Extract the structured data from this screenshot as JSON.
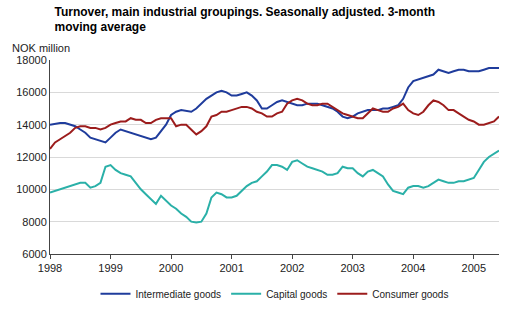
{
  "chart_data": {
    "type": "line",
    "title": "Turnover, main industrial groupings. Seasonally adjusted. 3-month moving average",
    "ylabel": "NOK million",
    "categories": [
      "1998",
      null,
      null,
      null,
      null,
      null,
      null,
      null,
      null,
      null,
      null,
      null,
      "1999",
      null,
      null,
      null,
      null,
      null,
      null,
      null,
      null,
      null,
      null,
      null,
      "2000",
      null,
      null,
      null,
      null,
      null,
      null,
      null,
      null,
      null,
      null,
      null,
      "2001",
      null,
      null,
      null,
      null,
      null,
      null,
      null,
      null,
      null,
      null,
      null,
      "2002",
      null,
      null,
      null,
      null,
      null,
      null,
      null,
      null,
      null,
      null,
      null,
      "2003",
      null,
      null,
      null,
      null,
      null,
      null,
      null,
      null,
      null,
      null,
      null,
      "2004",
      null,
      null,
      null,
      null,
      null,
      null,
      null,
      null,
      null,
      null,
      null,
      "2005",
      null,
      null,
      null,
      null,
      null
    ],
    "series": [
      {
        "name": "Intermediate goods",
        "color": "#1f3c9c",
        "values": [
          14000,
          14050,
          14100,
          14100,
          14000,
          13900,
          13700,
          13500,
          13200,
          13100,
          13000,
          12900,
          13200,
          13500,
          13700,
          13600,
          13500,
          13400,
          13300,
          13200,
          13100,
          13200,
          13600,
          14000,
          14600,
          14800,
          14900,
          14850,
          14800,
          15000,
          15300,
          15600,
          15800,
          16000,
          16100,
          16000,
          15800,
          15800,
          15900,
          16000,
          15800,
          15500,
          15000,
          15000,
          15200,
          15400,
          15500,
          15400,
          15300,
          15200,
          15200,
          15300,
          15300,
          15300,
          15200,
          15100,
          15000,
          14800,
          14500,
          14400,
          14500,
          14700,
          14800,
          14900,
          14900,
          14900,
          15000,
          15000,
          15100,
          15200,
          15600,
          16300,
          16700,
          16800,
          16900,
          17000,
          17100,
          17400,
          17300,
          17200,
          17300,
          17400,
          17400,
          17300,
          17300,
          17300,
          17400,
          17500,
          17500,
          17500
        ]
      },
      {
        "name": "Capital goods",
        "color": "#2ab0a8",
        "values": [
          9800,
          9900,
          10000,
          10100,
          10200,
          10300,
          10400,
          10400,
          10100,
          10200,
          10400,
          11400,
          11500,
          11200,
          11000,
          10900,
          10800,
          10400,
          10000,
          9700,
          9400,
          9100,
          9600,
          9300,
          9000,
          8800,
          8500,
          8300,
          8000,
          7950,
          8000,
          8500,
          9500,
          9800,
          9700,
          9500,
          9500,
          9600,
          9900,
          10200,
          10400,
          10500,
          10800,
          11100,
          11500,
          11500,
          11400,
          11200,
          11700,
          11800,
          11600,
          11400,
          11300,
          11200,
          11100,
          10900,
          10900,
          11000,
          11400,
          11300,
          11300,
          11000,
          10800,
          11100,
          11200,
          11000,
          10800,
          10300,
          9900,
          9800,
          9700,
          10100,
          10200,
          10200,
          10100,
          10200,
          10400,
          10600,
          10500,
          10400,
          10400,
          10500,
          10500,
          10600,
          10700,
          11200,
          11700,
          12000,
          12200,
          12400
        ]
      },
      {
        "name": "Consumer goods",
        "color": "#9c1c1c",
        "values": [
          12500,
          12900,
          13100,
          13300,
          13500,
          13800,
          13900,
          13900,
          13800,
          13800,
          13700,
          13800,
          14000,
          14100,
          14200,
          14200,
          14400,
          14300,
          14300,
          14100,
          14100,
          14300,
          14400,
          14400,
          14400,
          13900,
          14000,
          14000,
          13700,
          13400,
          13600,
          13900,
          14500,
          14600,
          14800,
          14800,
          14900,
          15000,
          15100,
          15100,
          15000,
          14800,
          14700,
          14500,
          14500,
          14700,
          14800,
          15300,
          15500,
          15600,
          15500,
          15300,
          15200,
          15200,
          15300,
          15300,
          15100,
          14900,
          14700,
          14600,
          14500,
          14400,
          14400,
          14700,
          15000,
          14900,
          14800,
          14800,
          15000,
          15100,
          15300,
          14900,
          14700,
          14600,
          14800,
          15200,
          15500,
          15400,
          15200,
          14900,
          14900,
          14700,
          14500,
          14300,
          14200,
          14000,
          14000,
          14100,
          14200,
          14500
        ]
      }
    ],
    "ylim": [
      6000,
      18000
    ],
    "yticks": [
      6000,
      8000,
      10000,
      12000,
      14000,
      16000,
      18000
    ],
    "grid": true,
    "legend": "bottom"
  }
}
